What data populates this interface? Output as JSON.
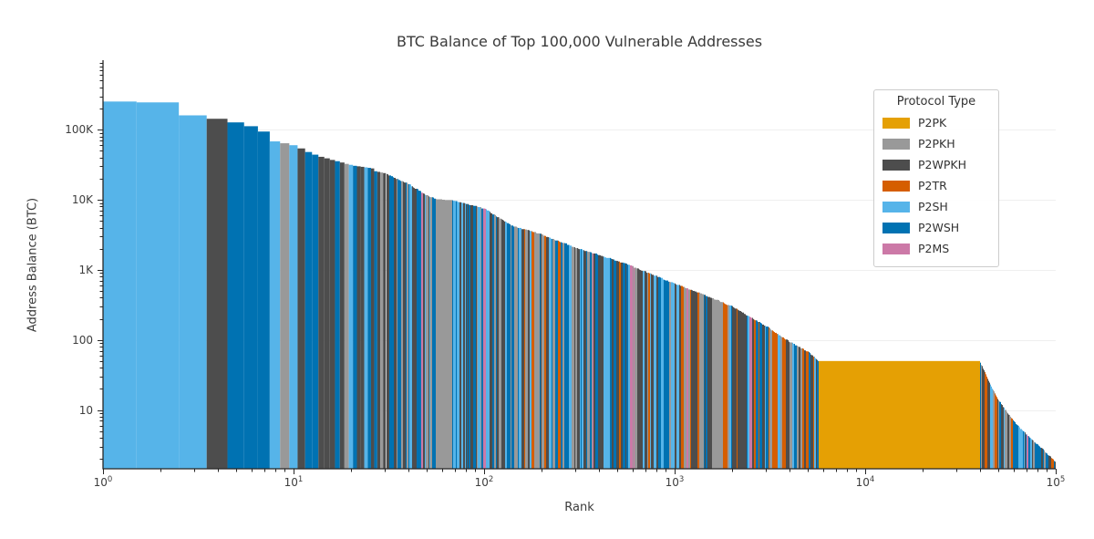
{
  "chart_data": {
    "type": "bar",
    "title": "BTC Balance of Top 100,000 Vulnerable Addresses",
    "xlabel": "Rank",
    "ylabel": "Address Balance (BTC)",
    "x_scale": "log",
    "y_scale": "log",
    "xlim": [
      1,
      100000
    ],
    "ylim": [
      1.45,
      980000
    ],
    "grid": "horizontal-decades",
    "grid_values": [
      10,
      100,
      1000,
      10000,
      100000
    ],
    "xticks": [
      {
        "base": "10",
        "exp": "0",
        "value": 1
      },
      {
        "base": "10",
        "exp": "1",
        "value": 10
      },
      {
        "base": "10",
        "exp": "2",
        "value": 100
      },
      {
        "base": "10",
        "exp": "3",
        "value": 1000
      },
      {
        "base": "10",
        "exp": "4",
        "value": 10000
      },
      {
        "base": "10",
        "exp": "5",
        "value": 100000
      }
    ],
    "yticks": [
      {
        "label": "100K",
        "value": 100000
      },
      {
        "label": "10K",
        "value": 10000
      },
      {
        "label": "1K",
        "value": 1000
      },
      {
        "label": "100",
        "value": 100
      },
      {
        "label": "10",
        "value": 10
      }
    ],
    "legend": {
      "title": "Protocol Type",
      "position": "upper-right",
      "entries": [
        {
          "label": "P2PK",
          "color": "#E5A004"
        },
        {
          "label": "P2PKH",
          "color": "#999999"
        },
        {
          "label": "P2WPKH",
          "color": "#4D4D4D"
        },
        {
          "label": "P2TR",
          "color": "#D55E00"
        },
        {
          "label": "P2SH",
          "color": "#56B4E9"
        },
        {
          "label": "P2WSH",
          "color": "#0072B2"
        },
        {
          "label": "P2MS",
          "color": "#CC79A7"
        }
      ]
    },
    "colors": {
      "P2PK": "#E5A004",
      "P2PKH": "#999999",
      "P2WPKH": "#4D4D4D",
      "P2TR": "#D55E00",
      "P2SH": "#56B4E9",
      "P2WSH": "#0072B2",
      "P2MS": "#CC79A7"
    },
    "bars_top30": [
      {
        "rank": 1,
        "value": 252000,
        "type": "P2SH"
      },
      {
        "rank": 2,
        "value": 245000,
        "type": "P2SH"
      },
      {
        "rank": 3,
        "value": 160000,
        "type": "P2SH"
      },
      {
        "rank": 4,
        "value": 143000,
        "type": "P2WPKH"
      },
      {
        "rank": 5,
        "value": 127000,
        "type": "P2WSH"
      },
      {
        "rank": 6,
        "value": 112000,
        "type": "P2WSH"
      },
      {
        "rank": 7,
        "value": 94000,
        "type": "P2WSH"
      },
      {
        "rank": 8,
        "value": 68000,
        "type": "P2SH"
      },
      {
        "rank": 9,
        "value": 64000,
        "type": "P2PKH"
      },
      {
        "rank": 10,
        "value": 60000,
        "type": "P2SH"
      },
      {
        "rank": 11,
        "value": 54000,
        "type": "P2WPKH"
      },
      {
        "rank": 12,
        "value": 48000,
        "type": "P2WSH"
      },
      {
        "rank": 13,
        "value": 44000,
        "type": "P2WSH"
      },
      {
        "rank": 14,
        "value": 41000,
        "type": "P2WPKH"
      },
      {
        "rank": 15,
        "value": 39000,
        "type": "P2WPKH"
      },
      {
        "rank": 16,
        "value": 37000,
        "type": "P2WPKH"
      },
      {
        "rank": 17,
        "value": 35500,
        "type": "P2WSH"
      },
      {
        "rank": 18,
        "value": 34000,
        "type": "P2WPKH"
      },
      {
        "rank": 19,
        "value": 32500,
        "type": "P2PKH"
      },
      {
        "rank": 20,
        "value": 31500,
        "type": "P2SH"
      },
      {
        "rank": 21,
        "value": 30500,
        "type": "P2WSH"
      },
      {
        "rank": 22,
        "value": 30000,
        "type": "P2WPKH"
      },
      {
        "rank": 23,
        "value": 29500,
        "type": "P2WPKH"
      },
      {
        "rank": 24,
        "value": 29000,
        "type": "P2SH"
      },
      {
        "rank": 25,
        "value": 28500,
        "type": "P2WSH"
      },
      {
        "rank": 26,
        "value": 28000,
        "type": "P2WPKH"
      },
      {
        "rank": 27,
        "value": 25500,
        "type": "P2WSH"
      },
      {
        "rank": 28,
        "value": 25000,
        "type": "P2WPKH"
      },
      {
        "rank": 29,
        "value": 24500,
        "type": "P2PKH"
      },
      {
        "rank": 30,
        "value": 24000,
        "type": "P2WPKH"
      }
    ],
    "envelope": [
      [
        30,
        24000
      ],
      [
        40,
        17000
      ],
      [
        50,
        11500
      ],
      [
        56,
        10300
      ],
      [
        68,
        10000
      ],
      [
        80,
        8800
      ],
      [
        100,
        7500
      ],
      [
        140,
        4300
      ],
      [
        200,
        3200
      ],
      [
        300,
        2100
      ],
      [
        500,
        1350
      ],
      [
        700,
        950
      ],
      [
        1000,
        640
      ],
      [
        1500,
        420
      ],
      [
        2000,
        300
      ],
      [
        3000,
        160
      ],
      [
        4000,
        95
      ],
      [
        5000,
        68
      ],
      [
        5630,
        52
      ],
      [
        5700,
        50
      ],
      [
        40000,
        50
      ],
      [
        44000,
        28
      ],
      [
        48000,
        17
      ],
      [
        52000,
        12
      ],
      [
        60000,
        7
      ],
      [
        70000,
        4.5
      ],
      [
        85000,
        2.8
      ],
      [
        100000,
        1.8
      ]
    ],
    "bands": [
      {
        "from": 56,
        "to": 68,
        "type": "P2PKH"
      },
      {
        "from": 425,
        "to": 458,
        "type": "P2SH"
      },
      {
        "from": 1600,
        "to": 1800,
        "type": "P2PKH"
      },
      {
        "from": 2150,
        "to": 2400,
        "type": "P2WPKH"
      },
      {
        "from": 5700,
        "to": 40000,
        "type": "P2PK",
        "flat": true,
        "value": 50
      }
    ],
    "mix_regions": [
      {
        "max_rank": 60,
        "weights": {
          "P2WSH": 0.3,
          "P2WPKH": 0.28,
          "P2SH": 0.22,
          "P2PKH": 0.14,
          "P2TR": 0.05,
          "P2MS": 0.01
        }
      },
      {
        "max_rank": 200,
        "weights": {
          "P2WSH": 0.28,
          "P2WPKH": 0.26,
          "P2SH": 0.2,
          "P2PKH": 0.18,
          "P2TR": 0.07,
          "P2MS": 0.01
        }
      },
      {
        "max_rank": 1000,
        "weights": {
          "P2WSH": 0.3,
          "P2WPKH": 0.24,
          "P2SH": 0.17,
          "P2PKH": 0.18,
          "P2TR": 0.09,
          "P2MS": 0.02
        }
      },
      {
        "max_rank": 5800,
        "weights": {
          "P2WSH": 0.24,
          "P2WPKH": 0.26,
          "P2PKH": 0.16,
          "P2SH": 0.13,
          "P2TR": 0.19,
          "P2MS": 0.02
        }
      },
      {
        "max_rank": 100000,
        "weights": {
          "P2WSH": 0.28,
          "P2SH": 0.22,
          "P2WPKH": 0.22,
          "P2PKH": 0.13,
          "P2TR": 0.13,
          "P2MS": 0.02
        }
      }
    ]
  }
}
